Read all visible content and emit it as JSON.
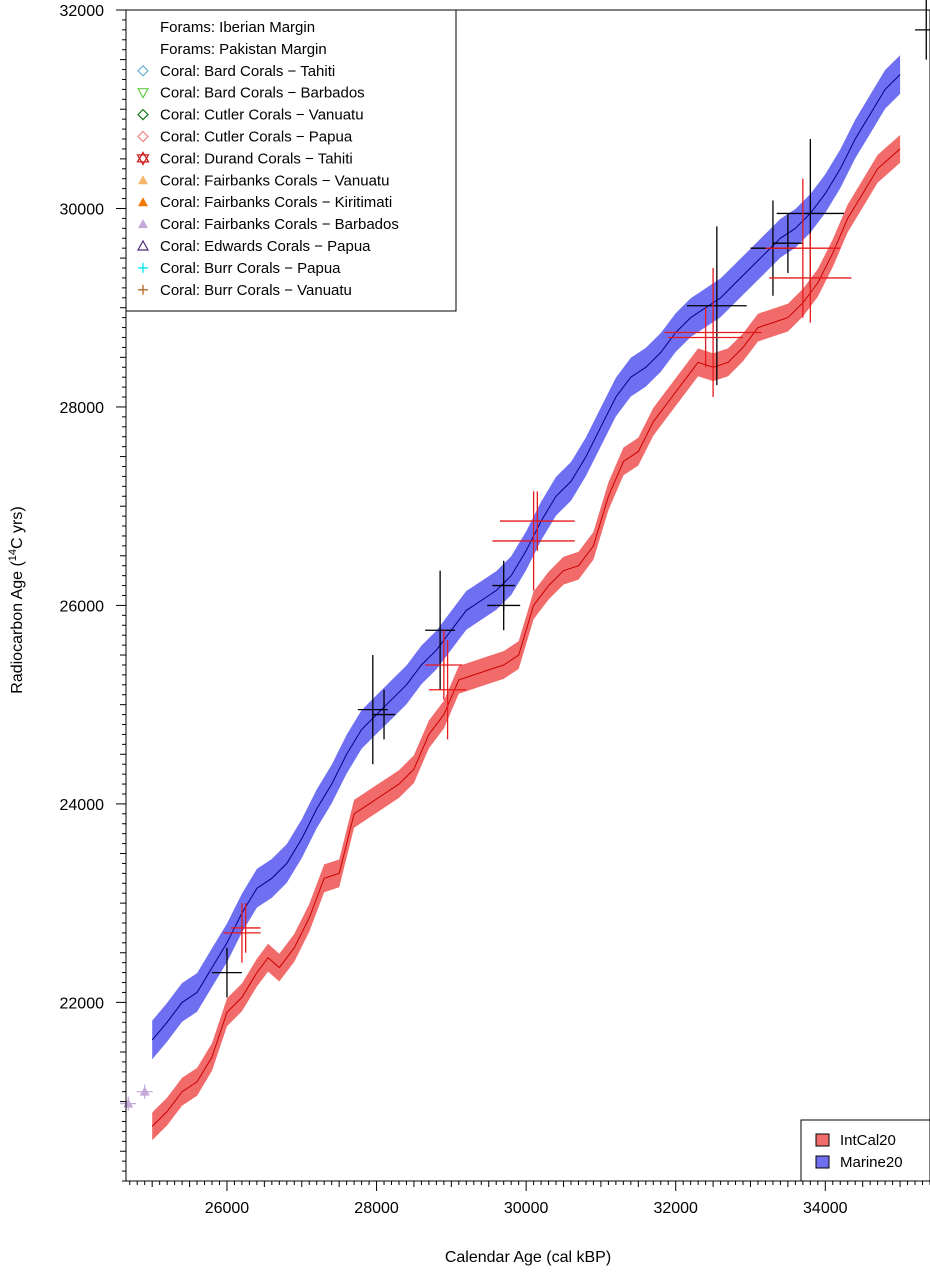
{
  "chart_data": {
    "type": "line",
    "xlabel": "Calendar Age (cal kBP)",
    "ylabel_main": "Radiocarbon Age (",
    "ylabel_sup": "14",
    "ylabel_tail": "C yrs)",
    "xlim": [
      24650,
      35400
    ],
    "ylim": [
      20200,
      32000
    ],
    "x_ticks": [
      26000,
      28000,
      30000,
      32000,
      34000
    ],
    "y_ticks": [
      22000,
      24000,
      26000,
      28000,
      30000,
      32000
    ],
    "grid": false,
    "legend_top": {
      "placement": "top-left",
      "entries": [
        {
          "label": "Forams: Iberian Margin",
          "marker": "none",
          "color": "#000000"
        },
        {
          "label": "Forams: Pakistan Margin",
          "marker": "none",
          "color": "#000000"
        },
        {
          "label": "Coral: Bard Corals − Tahiti",
          "marker": "diamond-open",
          "color": "#6baed6"
        },
        {
          "label": "Coral: Bard Corals − Barbados",
          "marker": "triangle-down-open",
          "color": "#66cc44"
        },
        {
          "label": "Coral: Cutler Corals − Vanuatu",
          "marker": "diamond-open",
          "color": "#1a7a1a"
        },
        {
          "label": "Coral: Cutler Corals − Papua",
          "marker": "diamond-open",
          "color": "#f08080"
        },
        {
          "label": "Coral: Durand Corals − Tahiti",
          "marker": "star-of-david",
          "color": "#cc2222"
        },
        {
          "label": "Coral: Fairbanks Corals − Vanuatu",
          "marker": "triangle-up-filled",
          "color": "#f5b56b"
        },
        {
          "label": "Coral: Fairbanks Corals − Kiritimati",
          "marker": "triangle-up-filled",
          "color": "#f07800"
        },
        {
          "label": "Coral: Fairbanks Corals − Barbados",
          "marker": "triangle-up-filled",
          "color": "#c3a8d8"
        },
        {
          "label": "Coral: Edwards Corals − Papua",
          "marker": "triangle-up-open",
          "color": "#4b2a7a"
        },
        {
          "label": "Coral: Burr Corals − Papua",
          "marker": "plus",
          "color": "#00e5ee"
        },
        {
          "label": "Coral: Burr Corals − Vanuatu",
          "marker": "plus",
          "color": "#b5651d"
        }
      ]
    },
    "legend_bottom": {
      "placement": "bottom-right",
      "entries": [
        {
          "label": "IntCal20",
          "color": "#f26b6b"
        },
        {
          "label": "Marine20",
          "color": "#6f6ff2"
        }
      ]
    },
    "series": [
      {
        "name": "Marine20",
        "line_color": "#00008b",
        "band_color": "#6f6ff2",
        "half_width": 195,
        "x": [
          25000,
          25200,
          25400,
          25600,
          25800,
          26000,
          26200,
          26400,
          26600,
          26800,
          27000,
          27200,
          27400,
          27600,
          27800,
          28000,
          28200,
          28400,
          28600,
          28800,
          29000,
          29200,
          29400,
          29600,
          29800,
          30000,
          30200,
          30400,
          30600,
          30800,
          31000,
          31200,
          31400,
          31600,
          31800,
          32000,
          32200,
          32400,
          32600,
          32800,
          33000,
          33200,
          33400,
          33600,
          33800,
          34000,
          34200,
          34400,
          34600,
          34800,
          35000
        ],
        "y": [
          21620,
          21800,
          22000,
          22100,
          22350,
          22600,
          22900,
          23150,
          23250,
          23400,
          23650,
          23950,
          24200,
          24500,
          24750,
          24900,
          25050,
          25200,
          25400,
          25550,
          25750,
          25950,
          26050,
          26150,
          26300,
          26550,
          26850,
          27100,
          27250,
          27500,
          27800,
          28100,
          28300,
          28400,
          28550,
          28750,
          28900,
          29000,
          29100,
          29250,
          29400,
          29550,
          29700,
          29800,
          29950,
          30150,
          30400,
          30700,
          30950,
          31200,
          31350
        ]
      },
      {
        "name": "IntCal20",
        "line_color": "#cc0000",
        "band_color": "#f26b6b",
        "half_width": 140,
        "x": [
          25000,
          25200,
          25400,
          25600,
          25800,
          26000,
          26200,
          26400,
          26550,
          26700,
          26900,
          27100,
          27300,
          27500,
          27700,
          27900,
          28100,
          28300,
          28500,
          28700,
          28900,
          29100,
          29300,
          29500,
          29700,
          29900,
          30100,
          30300,
          30500,
          30700,
          30900,
          31100,
          31300,
          31500,
          31700,
          31900,
          32100,
          32300,
          32500,
          32700,
          32900,
          33100,
          33300,
          33500,
          33700,
          33900,
          34100,
          34300,
          34500,
          34700,
          35000
        ],
        "y": [
          20750,
          20900,
          21100,
          21200,
          21450,
          21900,
          22050,
          22300,
          22450,
          22350,
          22550,
          22850,
          23250,
          23300,
          23900,
          24000,
          24100,
          24200,
          24350,
          24700,
          24900,
          25250,
          25300,
          25350,
          25400,
          25500,
          26000,
          26200,
          26350,
          26400,
          26600,
          27100,
          27450,
          27550,
          27850,
          28050,
          28250,
          28450,
          28400,
          28450,
          28600,
          28800,
          28850,
          28900,
          29050,
          29250,
          29550,
          29900,
          30150,
          30400,
          30600
        ]
      }
    ],
    "crosses_black": [
      {
        "x": 26000,
        "y": 22300,
        "dx": 200,
        "dy": 250
      },
      {
        "x": 27950,
        "y": 24950,
        "dx": 200,
        "dy": 550
      },
      {
        "x": 28100,
        "y": 24900,
        "dx": 150,
        "dy": 250
      },
      {
        "x": 28850,
        "y": 25750,
        "dx": 200,
        "dy": 600
      },
      {
        "x": 29700,
        "y": 26200,
        "dx": 150,
        "dy": 250
      },
      {
        "x": 29700,
        "y": 26000,
        "dx": 220,
        "dy": 250
      },
      {
        "x": 32550,
        "y": 29020,
        "dx": 400,
        "dy": 800
      },
      {
        "x": 33300,
        "y": 29600,
        "dx": 300,
        "dy": 480
      },
      {
        "x": 33500,
        "y": 29650,
        "dx": 200,
        "dy": 300
      },
      {
        "x": 33800,
        "y": 29950,
        "dx": 450,
        "dy": 750
      },
      {
        "x": 35350,
        "y": 31800,
        "dx": 150,
        "dy": 300
      }
    ],
    "crosses_red": [
      {
        "x": 26250,
        "y": 22750,
        "dx": 200,
        "dy": 250
      },
      {
        "x": 26200,
        "y": 22700,
        "dx": 250,
        "dy": 300
      },
      {
        "x": 28900,
        "y": 25400,
        "dx": 250,
        "dy": 350
      },
      {
        "x": 28950,
        "y": 25150,
        "dx": 250,
        "dy": 500
      },
      {
        "x": 30150,
        "y": 26850,
        "dx": 500,
        "dy": 300
      },
      {
        "x": 30100,
        "y": 26650,
        "dx": 550,
        "dy": 500
      },
      {
        "x": 32400,
        "y": 28700,
        "dx": 500,
        "dy": 300
      },
      {
        "x": 32500,
        "y": 28750,
        "dx": 650,
        "dy": 650
      },
      {
        "x": 33700,
        "y": 29600,
        "dx": 500,
        "dy": 700
      },
      {
        "x": 33800,
        "y": 29300,
        "dx": 550,
        "dy": 450
      }
    ],
    "points_fairbanks_barbados": [
      {
        "x": 24900,
        "y": 21100
      },
      {
        "x": 24680,
        "y": 20980
      }
    ]
  }
}
